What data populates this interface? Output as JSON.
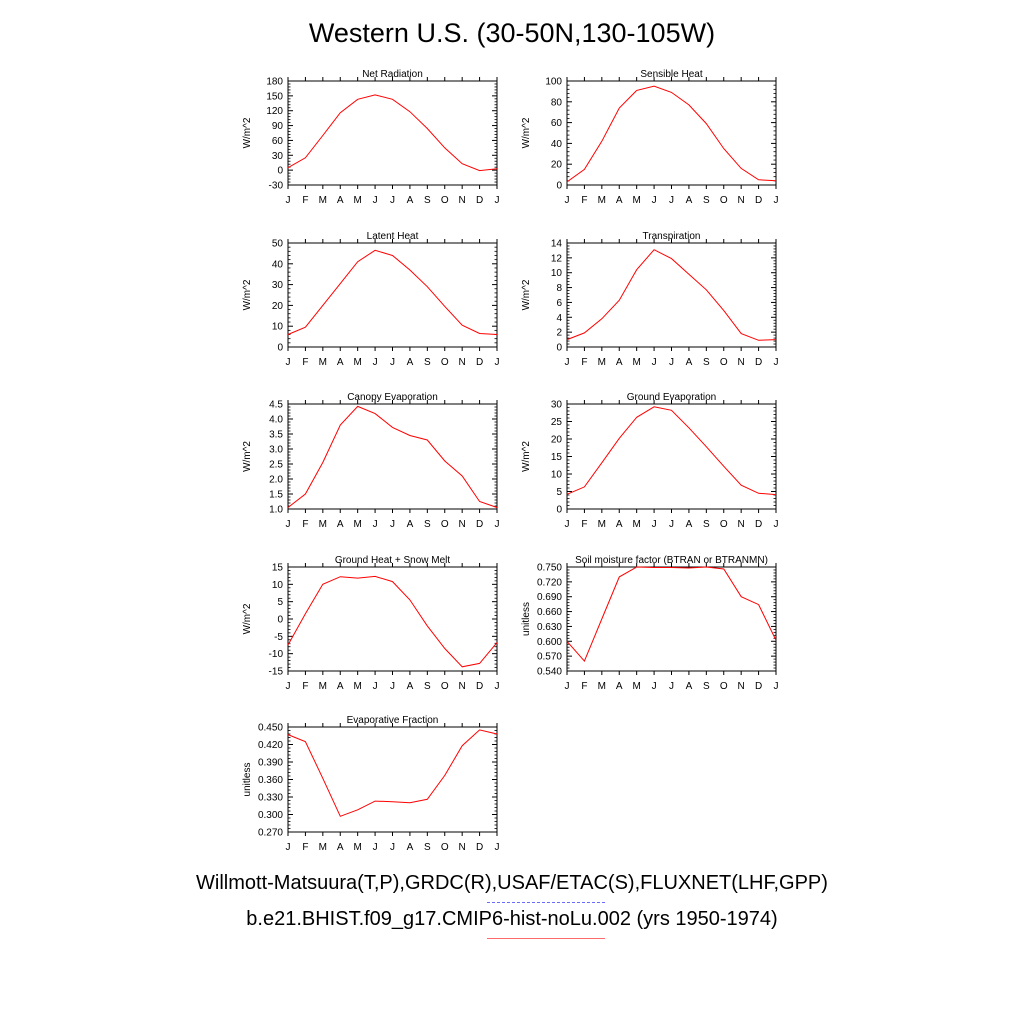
{
  "title": "Western U.S. (30-50N,130-105W)",
  "legend": {
    "observations": "Willmott-Matsuura(T,P),GRDC(R),USAF/ETAC(S),FLUXNET(LHF,GPP)",
    "model": "b.e21.BHIST.f09_g17.CMIP6-hist-noLu.002 (yrs 1950-1974)",
    "observations_color": "#6b6bff",
    "model_color": "#ff0000"
  },
  "chart_data": [
    {
      "type": "line",
      "title": "Net Radiation",
      "ylabel": "W/m^2",
      "categories": [
        "J",
        "F",
        "M",
        "A",
        "M",
        "J",
        "J",
        "A",
        "S",
        "O",
        "N",
        "D",
        "J"
      ],
      "ylim": [
        -30,
        180
      ],
      "yticks": [
        "-30",
        "0",
        "30",
        "60",
        "90",
        "120",
        "150",
        "180"
      ],
      "series": [
        {
          "values": [
            5,
            25,
            70,
            116,
            143,
            152,
            143,
            118,
            84,
            45,
            13,
            -1,
            3
          ]
        }
      ]
    },
    {
      "type": "line",
      "title": "Sensible Heat",
      "ylabel": "W/m^2",
      "categories": [
        "J",
        "F",
        "M",
        "A",
        "M",
        "J",
        "J",
        "A",
        "S",
        "O",
        "N",
        "D",
        "J"
      ],
      "ylim": [
        0,
        100
      ],
      "yticks": [
        "0",
        "20",
        "40",
        "60",
        "80",
        "100"
      ],
      "series": [
        {
          "values": [
            3,
            15,
            42,
            74,
            91,
            95,
            89,
            77,
            59,
            35,
            16,
            5,
            4
          ]
        }
      ]
    },
    {
      "type": "line",
      "title": "Latent Heat",
      "ylabel": "W/m^2",
      "categories": [
        "J",
        "F",
        "M",
        "A",
        "M",
        "J",
        "J",
        "A",
        "S",
        "O",
        "N",
        "D",
        "J"
      ],
      "ylim": [
        0,
        50
      ],
      "yticks": [
        "0",
        "10",
        "20",
        "30",
        "40",
        "50"
      ],
      "series": [
        {
          "values": [
            6,
            9.5,
            20,
            30.5,
            41,
            46.5,
            44,
            37,
            29,
            19.5,
            10.5,
            6.5,
            6
          ]
        }
      ]
    },
    {
      "type": "line",
      "title": "Transpiration",
      "ylabel": "W/m^2",
      "categories": [
        "J",
        "F",
        "M",
        "A",
        "M",
        "J",
        "J",
        "A",
        "S",
        "O",
        "N",
        "D",
        "J"
      ],
      "ylim": [
        0,
        14
      ],
      "yticks": [
        "0",
        "2",
        "4",
        "6",
        "8",
        "10",
        "12",
        "14"
      ],
      "series": [
        {
          "values": [
            1,
            1.9,
            3.8,
            6.3,
            10.4,
            13.1,
            11.9,
            9.8,
            7.7,
            4.9,
            1.8,
            0.9,
            1
          ]
        }
      ]
    },
    {
      "type": "line",
      "title": "Canopy Evaporation",
      "ylabel": "W/m^2",
      "categories": [
        "J",
        "F",
        "M",
        "A",
        "M",
        "J",
        "J",
        "A",
        "S",
        "O",
        "N",
        "D",
        "J"
      ],
      "ylim": [
        1.0,
        4.5
      ],
      "yticks": [
        "1.0",
        "1.5",
        "2.0",
        "2.5",
        "3.0",
        "3.5",
        "4.0",
        "4.5"
      ],
      "series": [
        {
          "values": [
            1.05,
            1.5,
            2.55,
            3.8,
            4.42,
            4.18,
            3.72,
            3.45,
            3.3,
            2.6,
            2.1,
            1.25,
            1.05
          ]
        }
      ]
    },
    {
      "type": "line",
      "title": "Ground Evaporation",
      "ylabel": "W/m^2",
      "categories": [
        "J",
        "F",
        "M",
        "A",
        "M",
        "J",
        "J",
        "A",
        "S",
        "O",
        "N",
        "D",
        "J"
      ],
      "ylim": [
        0,
        30
      ],
      "yticks": [
        "0",
        "5",
        "10",
        "15",
        "20",
        "25",
        "30"
      ],
      "series": [
        {
          "values": [
            4.2,
            6.3,
            13.2,
            20.2,
            26.2,
            29.2,
            28.2,
            23.2,
            17.8,
            12.2,
            6.8,
            4.5,
            4.1
          ]
        }
      ]
    },
    {
      "type": "line",
      "title": "Ground Heat + Snow Melt",
      "ylabel": "W/m^2",
      "categories": [
        "J",
        "F",
        "M",
        "A",
        "M",
        "J",
        "J",
        "A",
        "S",
        "O",
        "N",
        "D",
        "J"
      ],
      "ylim": [
        -15,
        15
      ],
      "yticks": [
        "-15",
        "-10",
        "-5",
        "0",
        "5",
        "10",
        "15"
      ],
      "series": [
        {
          "values": [
            -7.5,
            1.5,
            10,
            12.2,
            11.8,
            12.3,
            10.8,
            5.5,
            -2,
            -8.5,
            -13.8,
            -12.8,
            -6.8
          ]
        }
      ]
    },
    {
      "type": "line",
      "title": "Soil moisture factor (BTRAN or BTRANMN)",
      "ylabel": "unitless",
      "categories": [
        "J",
        "F",
        "M",
        "A",
        "M",
        "J",
        "J",
        "A",
        "S",
        "O",
        "N",
        "D",
        "J"
      ],
      "ylim": [
        0.54,
        0.75
      ],
      "yticks": [
        "0.540",
        "0.570",
        "0.600",
        "0.630",
        "0.660",
        "0.690",
        "0.720",
        "0.750"
      ],
      "series": [
        {
          "values": [
            0.6,
            0.56,
            0.645,
            0.73,
            0.75,
            0.749,
            0.749,
            0.748,
            0.75,
            0.746,
            0.69,
            0.674,
            0.602
          ]
        }
      ]
    },
    {
      "type": "line",
      "title": "Evaporative Fraction",
      "ylabel": "unitless",
      "categories": [
        "J",
        "F",
        "M",
        "A",
        "M",
        "J",
        "J",
        "A",
        "S",
        "O",
        "N",
        "D",
        "J"
      ],
      "ylim": [
        0.27,
        0.45
      ],
      "yticks": [
        "0.270",
        "0.300",
        "0.330",
        "0.360",
        "0.390",
        "0.420",
        "0.450"
      ],
      "series": [
        {
          "values": [
            0.437,
            0.425,
            0.362,
            0.297,
            0.308,
            0.323,
            0.322,
            0.32,
            0.326,
            0.367,
            0.418,
            0.445,
            0.438
          ]
        }
      ]
    }
  ]
}
